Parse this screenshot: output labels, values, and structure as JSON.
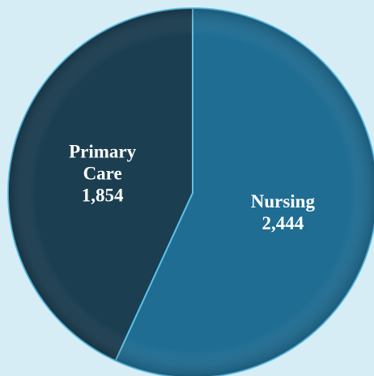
{
  "chart_data": {
    "type": "pie",
    "categories": [
      "Nursing",
      "Primary Care"
    ],
    "values": [
      2444,
      1854
    ],
    "value_labels": [
      "2,444",
      "1,854"
    ],
    "colors": [
      "#1f6d93",
      "#1b3e51"
    ]
  }
}
